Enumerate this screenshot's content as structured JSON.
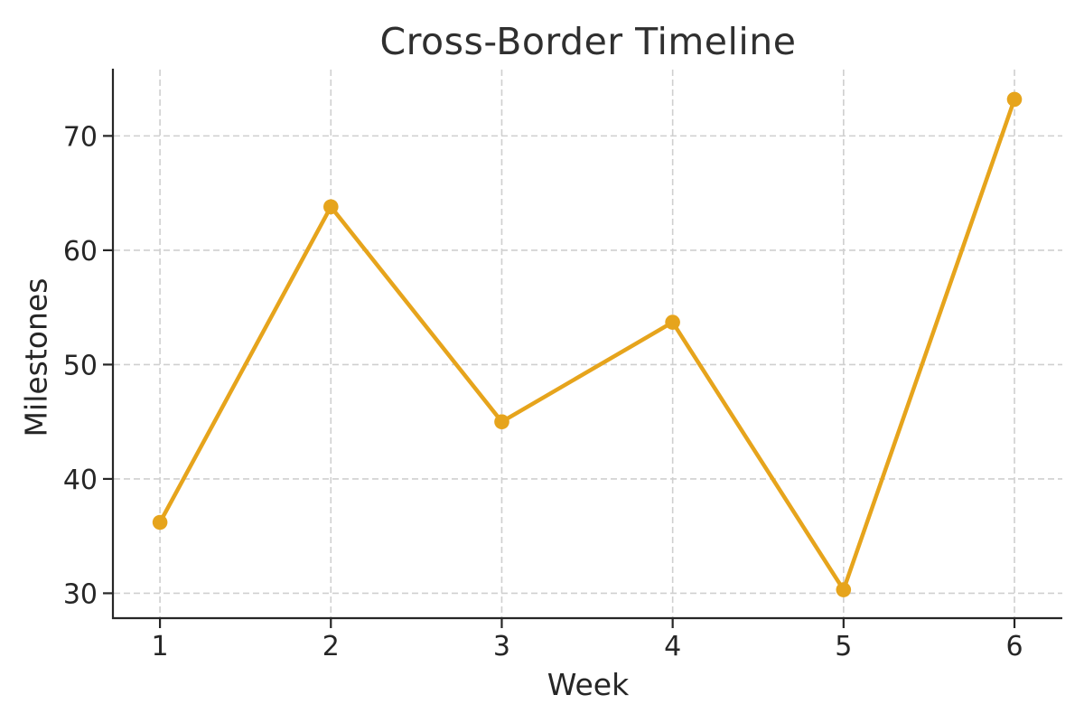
{
  "chart_data": {
    "type": "line",
    "title": "Cross-Border Timeline",
    "xlabel": "Week",
    "ylabel": "Milestones",
    "x": [
      1,
      2,
      3,
      4,
      5,
      6
    ],
    "series": [
      {
        "name": "Milestones",
        "values": [
          36.2,
          63.8,
          45.0,
          53.7,
          30.3,
          73.2
        ]
      }
    ],
    "xticks": [
      1,
      2,
      3,
      4,
      5,
      6
    ],
    "yticks": [
      30,
      40,
      50,
      60,
      70
    ],
    "xlim": [
      0.73,
      6.28
    ],
    "ylim": [
      27.9,
      75.8
    ],
    "grid": true,
    "grid_style": "dashed",
    "legend": false,
    "marker": "circle",
    "colors": {
      "line": "#E6A41C",
      "marker": "#E6A41C",
      "grid": "#CFCFCF",
      "axis": "#262626",
      "text": "#262626",
      "background": "#FFFFFF"
    }
  }
}
